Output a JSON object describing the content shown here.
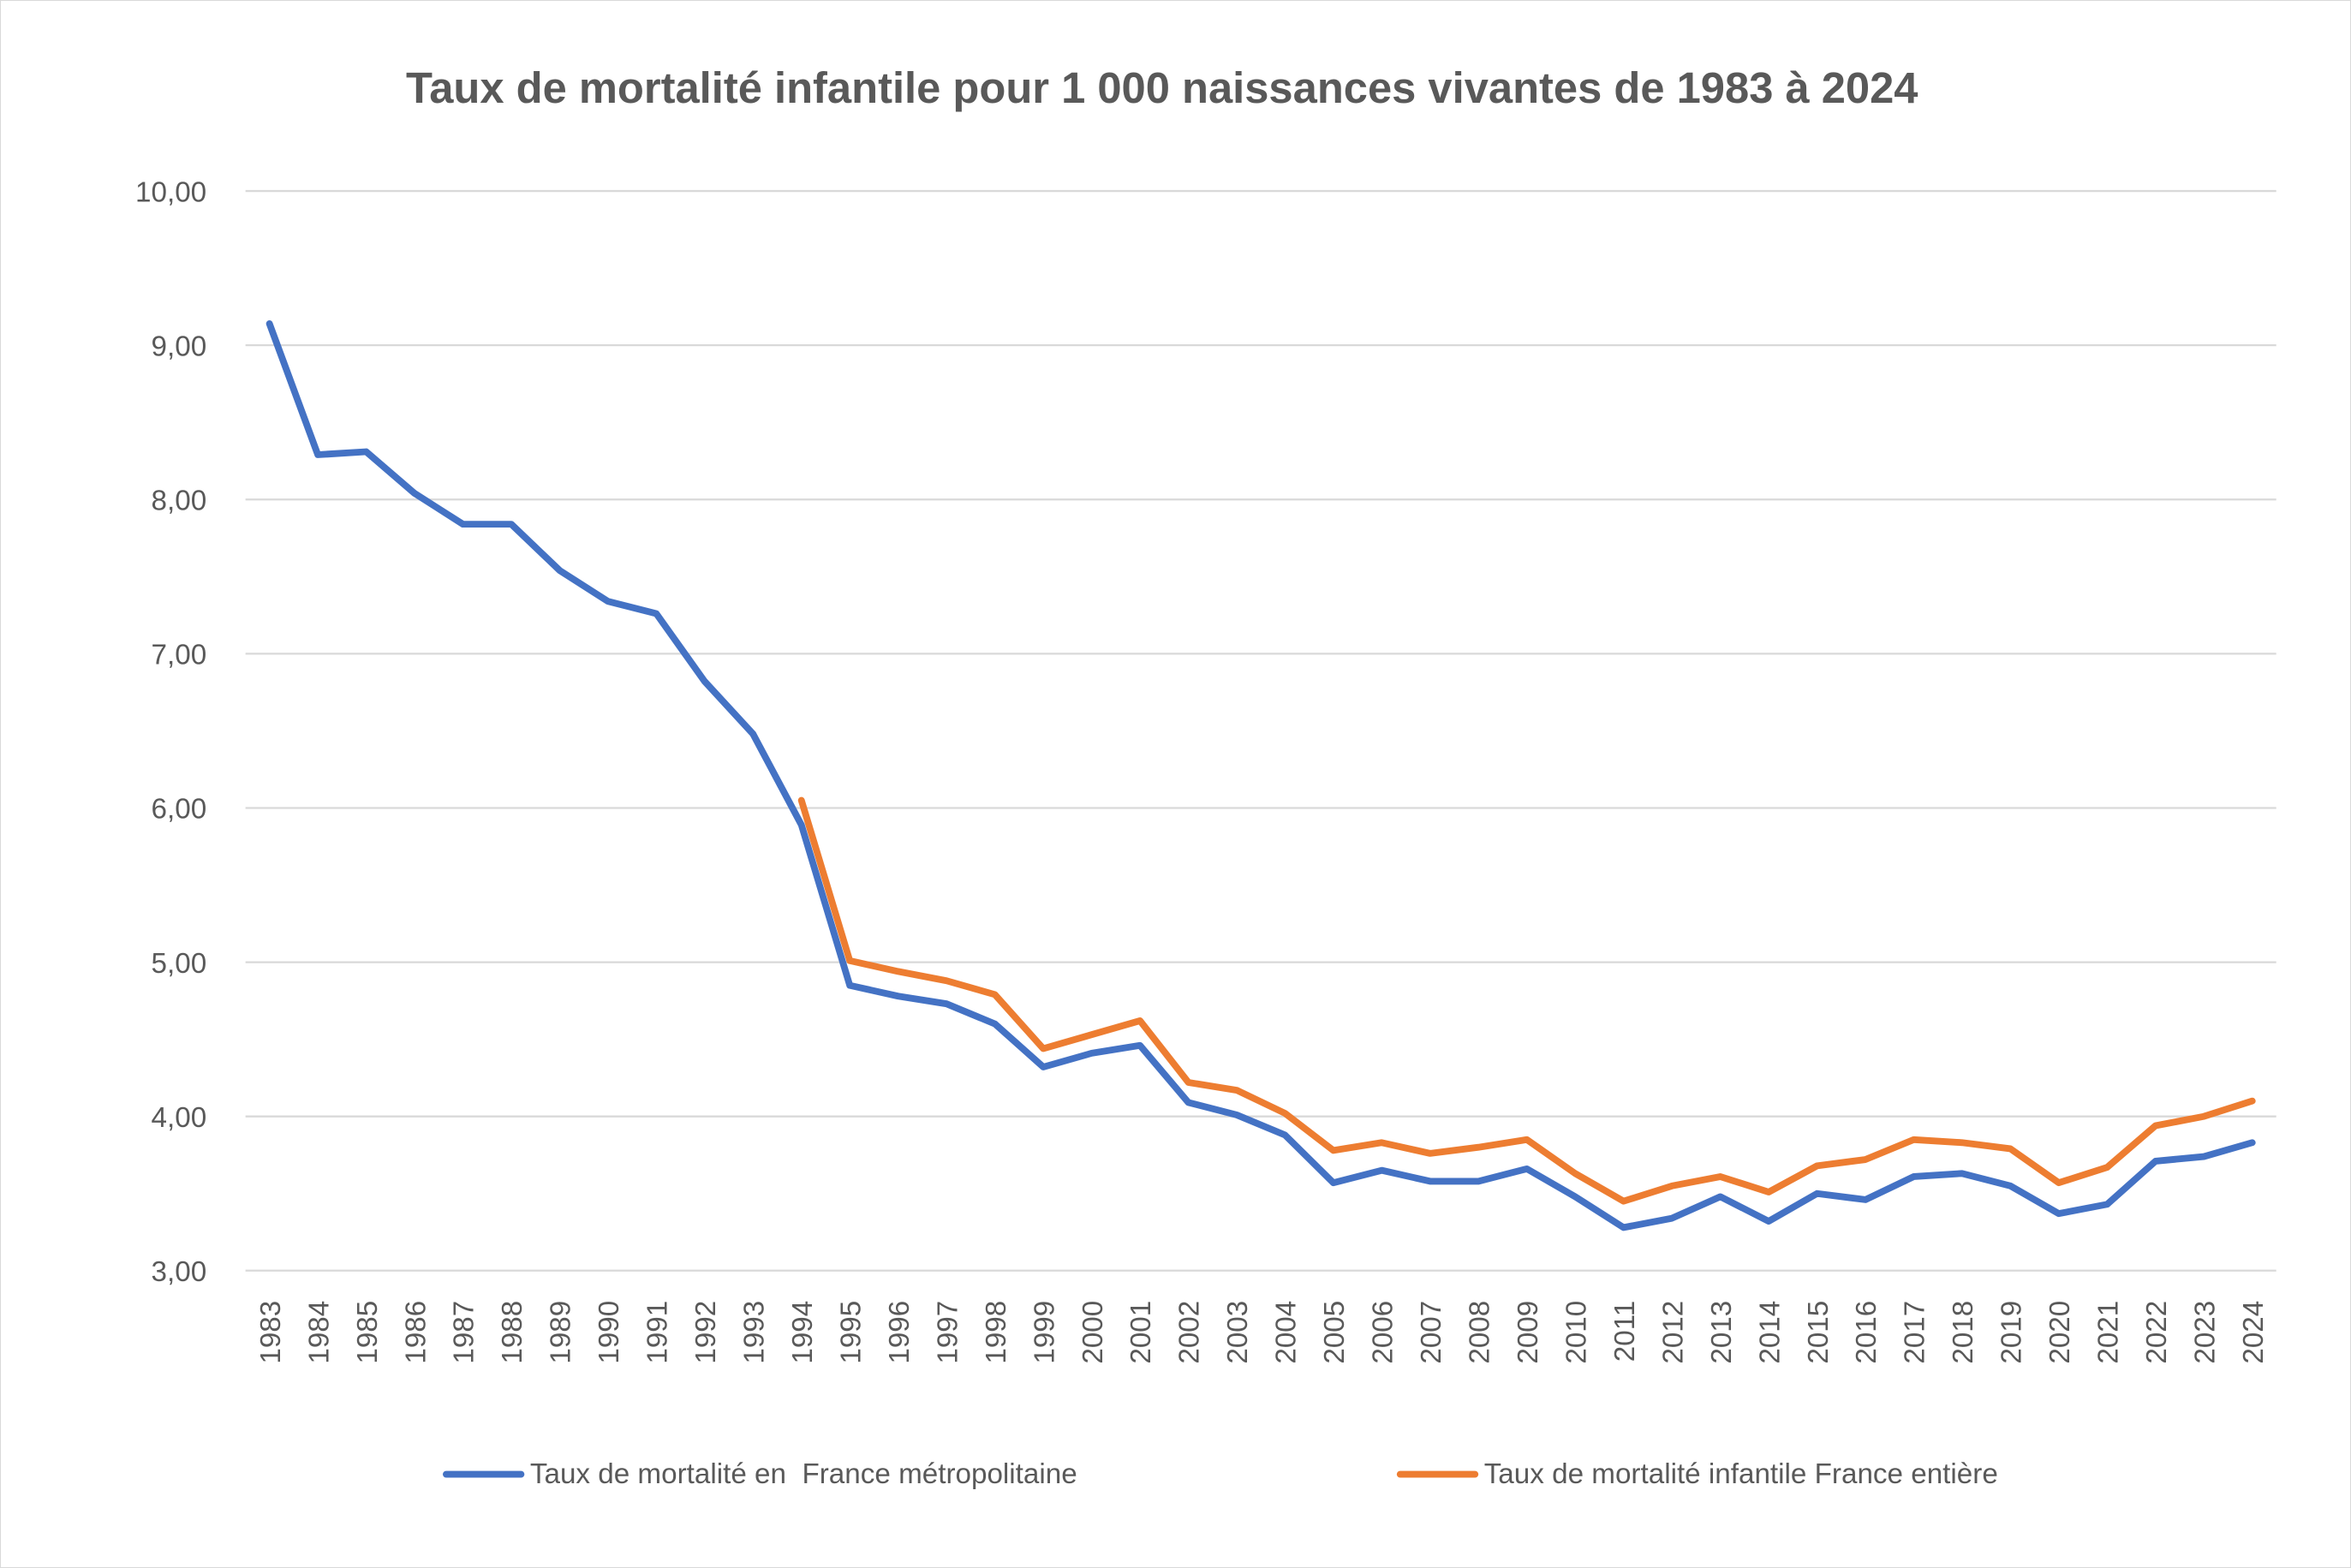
{
  "chart_data": {
    "type": "line",
    "title": "Taux de mortalité infantile pour 1 000 naissances vivantes de 1983 à 2024",
    "xlabel": "",
    "ylabel": "",
    "ylim": [
      3,
      10
    ],
    "y_ticks": [
      "3,00",
      "4,00",
      "5,00",
      "6,00",
      "7,00",
      "8,00",
      "9,00",
      "10,00"
    ],
    "grid": true,
    "legend_position": "bottom",
    "categories": [
      "1983",
      "1984",
      "1985",
      "1986",
      "1987",
      "1988",
      "1989",
      "1990",
      "1991",
      "1992",
      "1993",
      "1994",
      "1995",
      "1996",
      "1997",
      "1998",
      "1999",
      "2000",
      "2001",
      "2002",
      "2003",
      "2004",
      "2005",
      "2006",
      "2007",
      "2008",
      "2009",
      "2010",
      "2011",
      "2012",
      "2013",
      "2014",
      "2015",
      "2016",
      "2017",
      "2018",
      "2019",
      "2020",
      "2021",
      "2022",
      "2023",
      "2024"
    ],
    "series": [
      {
        "name": "Taux de mortalité en  France métropolitaine",
        "color": "#4472C4",
        "values": [
          9.14,
          8.29,
          8.31,
          8.04,
          7.84,
          7.84,
          7.54,
          7.34,
          7.26,
          6.82,
          6.48,
          5.89,
          4.85,
          4.78,
          4.73,
          4.6,
          4.32,
          4.41,
          4.46,
          4.09,
          4.01,
          3.88,
          3.57,
          3.65,
          3.58,
          3.58,
          3.66,
          3.48,
          3.28,
          3.34,
          3.48,
          3.32,
          3.5,
          3.46,
          3.61,
          3.63,
          3.55,
          3.37,
          3.43,
          3.71,
          3.74,
          3.83
        ]
      },
      {
        "name": "Taux de mortalité infantile France entière",
        "color": "#ED7D31",
        "values": [
          null,
          null,
          null,
          null,
          null,
          null,
          null,
          null,
          null,
          null,
          null,
          6.05,
          5.01,
          4.94,
          4.88,
          4.79,
          4.44,
          4.53,
          4.62,
          4.22,
          4.17,
          4.02,
          3.78,
          3.83,
          3.76,
          3.8,
          3.85,
          3.63,
          3.45,
          3.55,
          3.61,
          3.51,
          3.68,
          3.72,
          3.85,
          3.83,
          3.79,
          3.57,
          3.67,
          3.94,
          4.0,
          4.1
        ]
      }
    ]
  }
}
